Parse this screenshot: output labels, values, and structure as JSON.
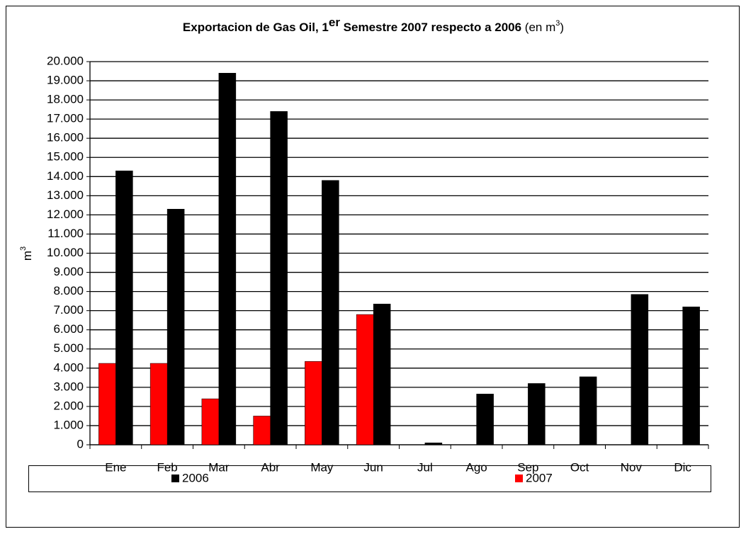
{
  "chart_data": {
    "type": "bar",
    "title": [
      "Exportacion de Gas Oil, 1",
      "er",
      " Semestre 2007 respecto a 2006",
      " (en m",
      "3",
      ")"
    ],
    "y_label": [
      "m",
      "3"
    ],
    "categories": [
      "Ene",
      "Feb",
      "Mar",
      "Abr",
      "May",
      "Jun",
      "Jul",
      "Ago",
      "Sep",
      "Oct",
      "Nov",
      "Dic"
    ],
    "series": [
      {
        "name": "2006",
        "color": "#000000",
        "values": [
          14300,
          12300,
          19400,
          17400,
          13800,
          7350,
          100,
          2650,
          3200,
          3550,
          7850,
          7200
        ]
      },
      {
        "name": "2007",
        "color": "#ff0000",
        "values": [
          4250,
          4250,
          2400,
          1500,
          4350,
          6800,
          null,
          null,
          null,
          null,
          null,
          null
        ]
      }
    ],
    "ylim": [
      0,
      20000
    ],
    "yticks": [
      0,
      {
        "value": 1000,
        "label": "1.000"
      },
      {
        "value": 2000,
        "label": "2.000"
      },
      {
        "value": 3000,
        "label": "3.000"
      },
      {
        "value": 4000,
        "label": "4.000"
      },
      {
        "value": 5000,
        "label": "5.000"
      },
      {
        "value": 6000,
        "label": "6.000"
      },
      {
        "value": 7000,
        "label": "7.000"
      },
      {
        "value": 8000,
        "label": "8.000"
      },
      {
        "value": 9000,
        "label": "9.000"
      },
      {
        "value": 10000,
        "label": "10.000"
      },
      {
        "value": 11000,
        "label": "11.000"
      },
      {
        "value": 12000,
        "label": "12.000"
      },
      {
        "value": 13000,
        "label": "13.000"
      },
      {
        "value": 14000,
        "label": "14.000"
      },
      {
        "value": 15000,
        "label": "15.000"
      },
      {
        "value": 16000,
        "label": "16.000"
      },
      {
        "value": 17000,
        "label": "17.000"
      },
      {
        "value": 18000,
        "label": "18.000"
      },
      {
        "value": 19000,
        "label": "19.000"
      },
      {
        "value": 20000,
        "label": "20.000"
      }
    ],
    "grid": true,
    "legend": "bottom"
  }
}
